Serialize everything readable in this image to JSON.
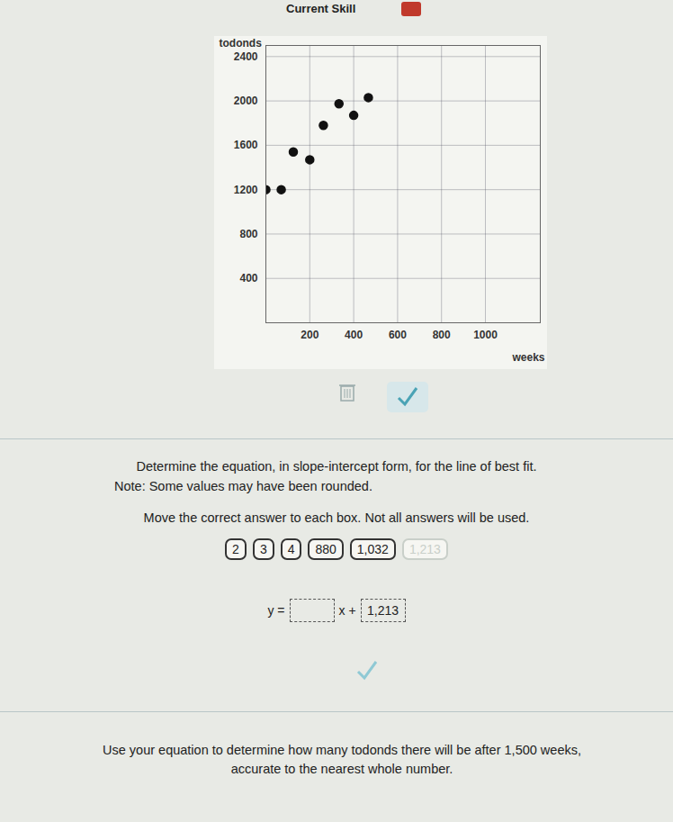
{
  "header": {
    "title": "Current Skill"
  },
  "chart_data": {
    "type": "scatter",
    "x": [
      0,
      70,
      125,
      200,
      262,
      333,
      400,
      467
    ],
    "values": [
      1200,
      1200,
      1540,
      1470,
      1780,
      1975,
      1870,
      2030
    ],
    "xlabel": "weeks",
    "ylabel": "todonds",
    "xlim": [
      0,
      1250
    ],
    "ylim": [
      0,
      2500
    ],
    "xticks": [
      200,
      400,
      600,
      800,
      1000
    ],
    "yticks": [
      400,
      800,
      1200,
      1600,
      2000,
      2400
    ],
    "grid": true,
    "color": "#111111",
    "marker": "circle"
  },
  "instructions": [
    "Determine the equation, in slope-intercept form, for the line of best fit.",
    "Note: Some values may have been rounded.",
    "Move the correct answer to each box. Not all answers will be used."
  ],
  "answer_choices": [
    "2",
    "3",
    "4",
    "880",
    "1,032",
    "1,213"
  ],
  "placed_choices": [
    "1,213"
  ],
  "equation": {
    "lhs": "y =",
    "middle": "x +",
    "boxes": [
      null,
      "1,213"
    ]
  },
  "question": "Use your equation to determine how many todonds there will be after 1,500 weeks, accurate to the nearest whole number."
}
